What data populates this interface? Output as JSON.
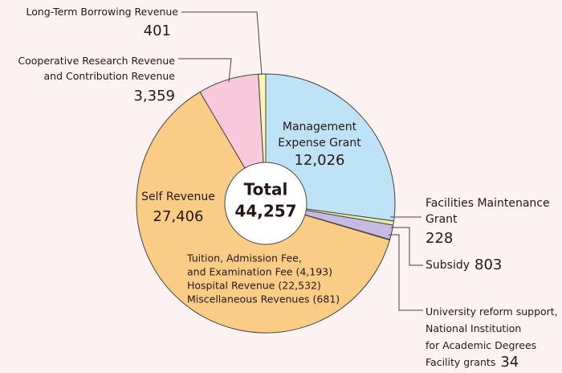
{
  "chart_data": {
    "type": "donut",
    "categories": [
      "Management\nExpense Grant",
      "Facilities Maintenance\nGrant",
      "Subsidy",
      "University reform support,\nNational Institution\nfor Academic Degrees\nFacility grants",
      "Self Revenue",
      "Cooperative Research Revenue\nand Contribution Revenue",
      "Long-Term Borrowing Revenue"
    ],
    "values": [
      12026,
      228,
      803,
      34,
      27406,
      3359,
      401
    ],
    "value_labels": [
      "12,026",
      "228",
      "803",
      "34",
      "27,406",
      "3,359",
      "401"
    ],
    "colors": [
      "#bfe3f6",
      "#dcefa6",
      "#c6b9e2",
      "#8fb8de",
      "#f9cd86",
      "#f7c9da",
      "#fdf5b2"
    ],
    "total": {
      "label": "Total",
      "value": 44257,
      "value_label": "44,257"
    },
    "annotations": [
      "Tuition, Admission Fee,",
      "and Examination Fee (4,193)",
      "Hospital Revenue (22,532)",
      "Miscellaneous Revenues (681)"
    ]
  }
}
